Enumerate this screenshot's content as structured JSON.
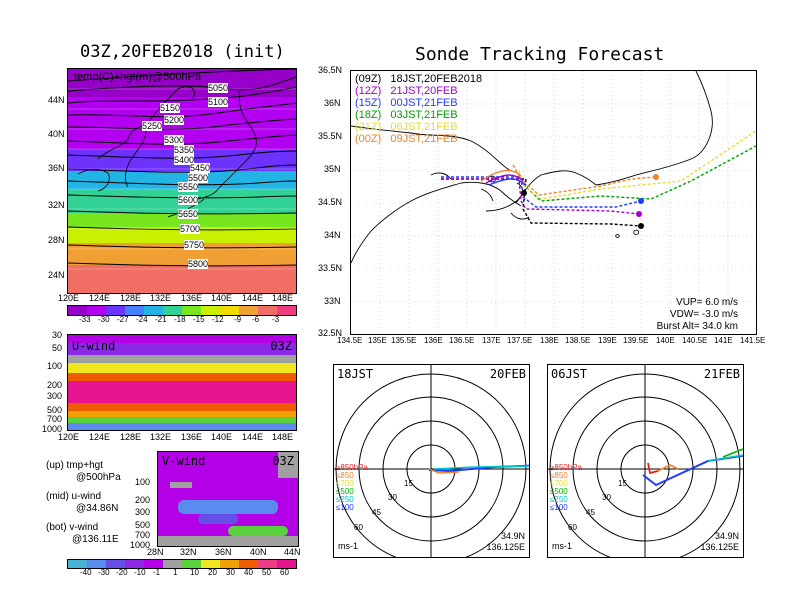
{
  "left": {
    "map_title": "03Z,20FEB2018 (init)",
    "map_label": "temp(C)+hgt(m)@500hPa",
    "lat_labels": [
      "44N",
      "40N",
      "36N",
      "32N",
      "28N",
      "24N"
    ],
    "lon_labels": [
      "120E",
      "124E",
      "128E",
      "132E",
      "136E",
      "140E",
      "144E",
      "148E"
    ],
    "contours": [
      "5050",
      "5100",
      "5150",
      "5200",
      "5250",
      "5300",
      "5350",
      "5400",
      "5450",
      "5500",
      "5550",
      "5600",
      "5650",
      "5700",
      "5750",
      "5800"
    ],
    "temp_scale": [
      "-33",
      "-30",
      "-27",
      "-24",
      "-21",
      "-18",
      "-15",
      "-12",
      "-9",
      "-6",
      "-3"
    ],
    "uwind_title": "U-wind",
    "uwind_time": "03Z",
    "press_labels": [
      "30",
      "50",
      "100",
      "200",
      "300",
      "500",
      "700",
      "1000"
    ],
    "vwind_title": "V-wind",
    "vwind_time": "03Z",
    "vwind_press": [
      "100",
      "200",
      "300",
      "500",
      "700",
      "1000"
    ],
    "vwind_lat_labels": [
      "28N",
      "32N",
      "36N",
      "40N",
      "44N"
    ],
    "wind_scale": [
      "-40",
      "-30",
      "-20",
      "-10",
      "-1",
      "1",
      "10",
      "20",
      "30",
      "40",
      "50",
      "60"
    ],
    "legend": {
      "up": "(up) tmp+hgt",
      "up2": "@500hPa",
      "mid": "(mid) u-wind",
      "mid2": "@34.86N",
      "bot": "(bot) v-wind",
      "bot2": "@136.11E"
    }
  },
  "right": {
    "title": "Sonde Tracking Forecast",
    "runs": [
      {
        "code": "(09Z)",
        "text": "18JST,20FEB2018",
        "color": "#000000"
      },
      {
        "code": "(12Z)",
        "text": "21JST,20FEB",
        "color": "#a000c8"
      },
      {
        "code": "(15Z)",
        "text": "00JST,21FEB",
        "color": "#1e3cff"
      },
      {
        "code": "(18Z)",
        "text": "03JST,21FEB",
        "color": "#00a000"
      },
      {
        "code": "(21Z)",
        "text": "06JST,21FEB",
        "color": "#e6dc32"
      },
      {
        "code": "(00Z)",
        "text": "09JST,21FEB",
        "color": "#f08228"
      }
    ],
    "lat_labels": [
      "36.5N",
      "36N",
      "35.5N",
      "35N",
      "34.5N",
      "34N",
      "33.5N",
      "33N",
      "32.5N"
    ],
    "lon_labels": [
      "134.5E",
      "135E",
      "135.5E",
      "136E",
      "136.5E",
      "137E",
      "137.5E",
      "138E",
      "138.5E",
      "139E",
      "139.5E",
      "140E",
      "140.5E",
      "141E",
      "141.5E"
    ],
    "params": {
      "vup": "VUP= 6.0 m/s",
      "vdw": "VDW= -3.0 m/s",
      "burst": "Burst Alt= 34.0 km"
    }
  },
  "polar": [
    {
      "time": "18JST",
      "date": "20FEB",
      "lat": "34.9N",
      "lon": "136.125E",
      "unit": "ms-1"
    },
    {
      "time": "06JST",
      "date": "21FEB",
      "lat": "34.9N",
      "lon": "136.125E",
      "unit": "ms-1"
    }
  ],
  "polar_rings": [
    "15",
    "30",
    "45",
    "60"
  ],
  "polar_levels": [
    {
      "text": "≥850hPa",
      "color": "#e61e1e"
    },
    {
      "text": "≤850",
      "color": "#f08228"
    },
    {
      "text": "≤700",
      "color": "#e6dc32"
    },
    {
      "text": "≤500",
      "color": "#00b400"
    },
    {
      "text": "≤250",
      "color": "#00c8c8"
    },
    {
      "text": "≤100",
      "color": "#1e3cff"
    }
  ],
  "colors": {
    "temp": [
      "#9600c8",
      "#b400f0",
      "#6e32ff",
      "#4682ff",
      "#23b4e6",
      "#32d296",
      "#78e61e",
      "#c8f000",
      "#f0dc00",
      "#f0a032",
      "#f06e64",
      "#f03c82"
    ],
    "wind": [
      "#46b4d2",
      "#5a8cf0",
      "#6450e6",
      "#8c28e6",
      "#b400e6",
      "#a0a0a0",
      "#5ad23c",
      "#f0e61e",
      "#f0a000",
      "#f05a00",
      "#f03c82",
      "#e6148c"
    ]
  }
}
